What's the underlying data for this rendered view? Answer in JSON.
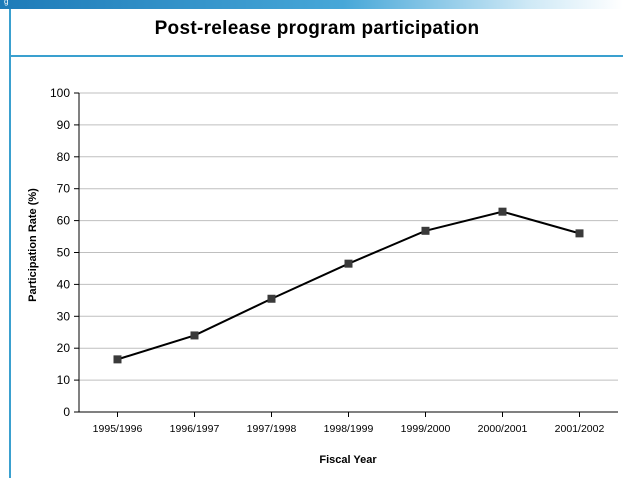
{
  "header": {
    "tag": "g"
  },
  "colors": {
    "accent": "#3aa0cf",
    "line": "#000000",
    "marker": "#3a3a3a",
    "grid": "#bfbfbf"
  },
  "chart_data": {
    "type": "line",
    "title": "Post-release program participation",
    "xlabel": "Fiscal Year",
    "ylabel": "Participation Rate (%)",
    "categories": [
      "1995/1996",
      "1996/1997",
      "1997/1998",
      "1998/1999",
      "1999/2000",
      "2000/2001",
      "2001/2002"
    ],
    "series": [
      {
        "values": [
          16.5,
          24,
          35.5,
          46.5,
          56.8,
          62.8,
          56
        ]
      }
    ],
    "ylim": [
      0,
      100
    ],
    "yticks": [
      0,
      10,
      20,
      30,
      40,
      50,
      60,
      70,
      80,
      90,
      100
    ],
    "grid": true,
    "legend": "none"
  }
}
